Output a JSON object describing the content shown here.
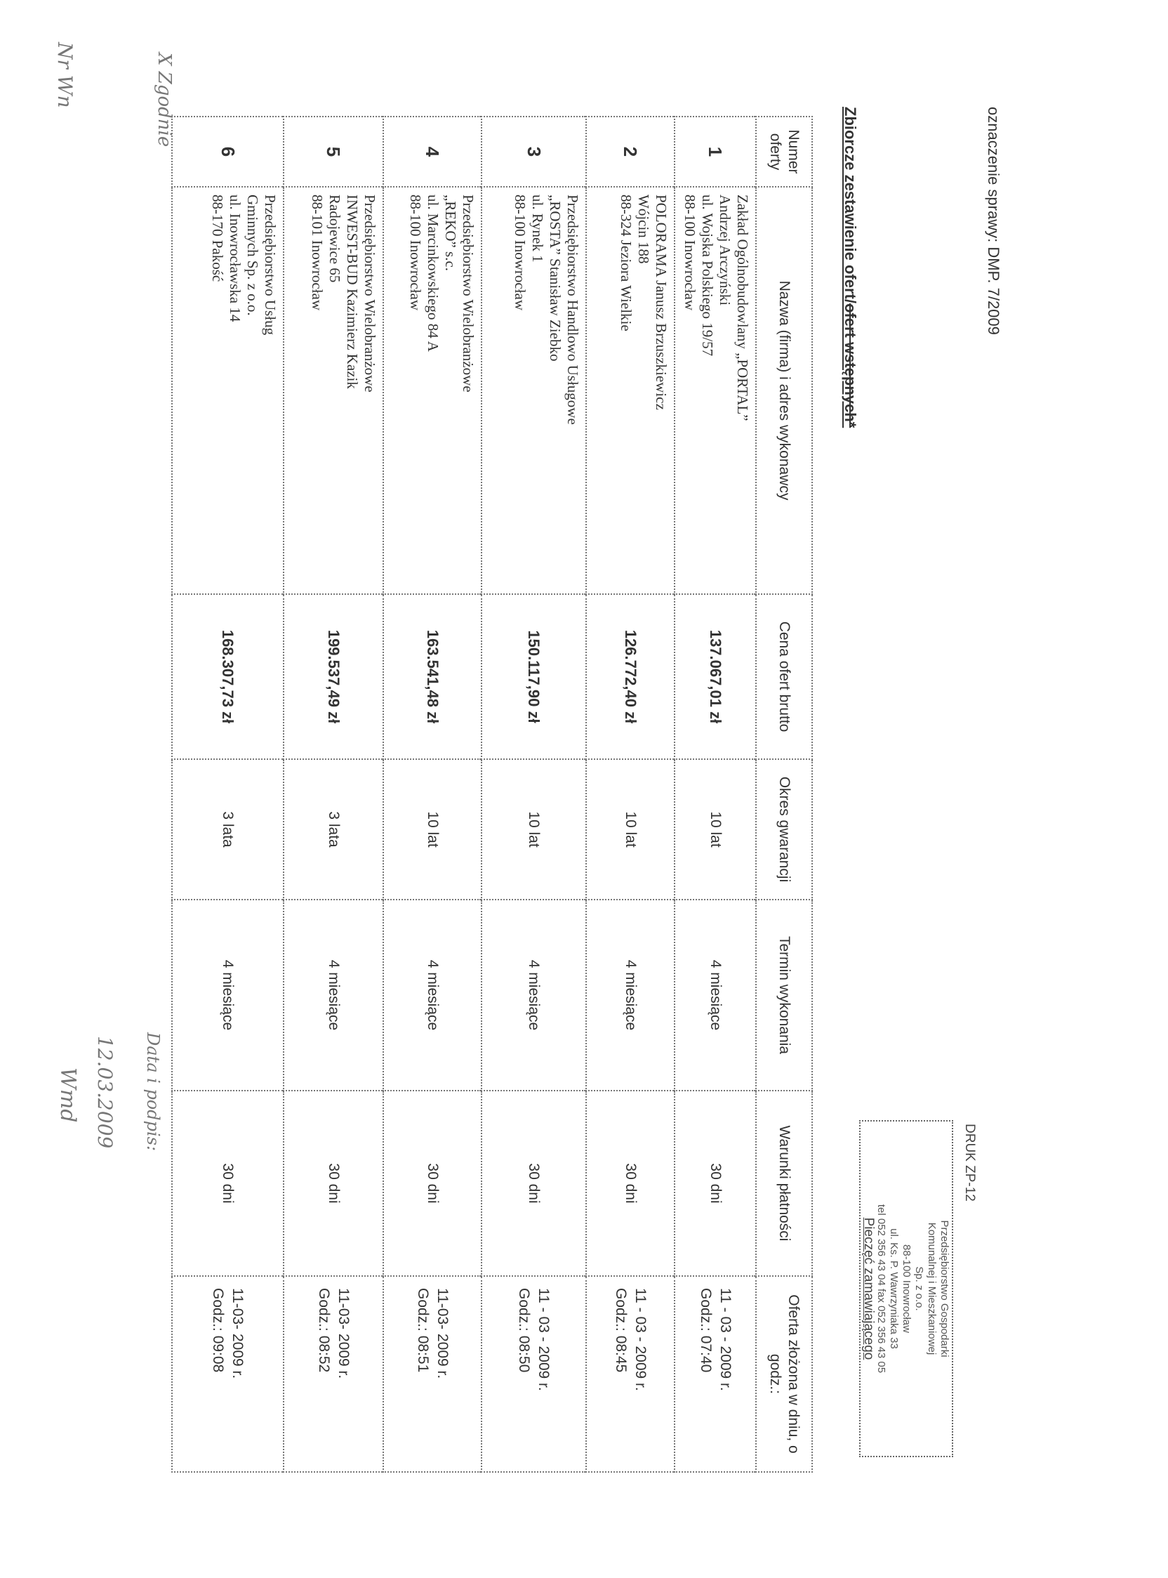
{
  "header": {
    "case_label": "oznaczenie sprawy: DMP. 7/2009",
    "title_main": "Zbiorcze zestawienie ofert/",
    "title_struck": "ofert wstępnych*"
  },
  "table": {
    "columns": [
      "Numer oferty",
      "Nazwa (firma) i adres wykonawcy",
      "Cena ofert brutto",
      "Okres gwarancji",
      "Termin wykonania",
      "Warunki płatności",
      "Oferta złożona w dniu, o godz.:"
    ],
    "rows": [
      {
        "num": "1",
        "name": [
          "Zakład Ogólnobudowlany „PORTAL”",
          "Andrzej Arczyński",
          "ul. Wojska Polskiego 19/57",
          "88-100 Inowrocław"
        ],
        "price": "137.067,01 zł",
        "warranty": "10 lat",
        "term": "4 miesiące",
        "payment": "30 dni",
        "date": "11 - 03 - 2009 r.",
        "time": "Godz.: 07:40"
      },
      {
        "num": "2",
        "name": [
          "POLORAMA Janusz Brzuszkiewicz",
          "Wójcin 188",
          "88-324 Jeziora Wielkie",
          ""
        ],
        "price": "126.772,40 zł",
        "warranty": "10 lat",
        "term": "4 miesiące",
        "payment": "30 dni",
        "date": "11 - 03 - 2009 r.",
        "time": "Godz.: 08:45"
      },
      {
        "num": "3",
        "name": [
          "Przedsiębiorstwo Handlowo Usługowe",
          "„ROSTA” Stanisław Ziebko",
          "ul. Rynek 1",
          "88-100 Inowrocław"
        ],
        "price": "150.117,90 zł",
        "warranty": "10 lat",
        "term": "4 miesiące",
        "payment": "30 dni",
        "date": "11 - 03 - 2009 r.",
        "time": "Godz.: 08:50"
      },
      {
        "num": "4",
        "name": [
          "Przedsiębiorstwo Wielobranżowe",
          "„REKO” s.c.",
          "ul. Marcinkowskiego 84 A",
          "88-100 Inowrocław"
        ],
        "price": "163.541,48 zł",
        "warranty": "10 lat",
        "term": "4 miesiące",
        "payment": "30 dni",
        "date": "11-03- 2009 r.",
        "time": "Godz.: 08:51"
      },
      {
        "num": "5",
        "name": [
          "Przedsiębiorstwo Wielobranżowe",
          "INWEST-BUD Kazimierz Kazik",
          "Radojewice 65",
          "88-101 Inowrocław"
        ],
        "price": "199.537,49 zł",
        "warranty": "3 lata",
        "term": "4 miesiące",
        "payment": "30 dni",
        "date": "11-03- 2009 r.",
        "time": "Godz.: 08:52"
      },
      {
        "num": "6",
        "name": [
          "Przedsiębiorstwo Usług",
          "Gminnych Sp. z o.o.",
          "ul. Inowrocławska 14",
          "88-170 Pakość"
        ],
        "price": "168.307,73 zł",
        "warranty": "3 lata",
        "term": "4 miesiące",
        "payment": "30 dni",
        "date": "11-03- 2009 r.",
        "time": "Godz.: 09:08"
      }
    ]
  },
  "stamp": {
    "form_code": "DRUK ZP-12",
    "lines": [
      "Przedsiębiorstwo Gospodarki",
      "Komunalnej i Mieszkaniowej",
      "Sp. z o.o.",
      "88-100 Inowrocław",
      "ul. Ks. P. Wawrzyniaka 33",
      "tel 052 356 43 04 fax 052 356 43 05"
    ],
    "caption": "Pieczęć zamawiającego"
  },
  "handwriting": {
    "ref": "Nr Wn",
    "approval": "X Zgodnie",
    "date_label": "Data i podpis:",
    "date": "12.03.2009",
    "signature": "Wmd"
  }
}
